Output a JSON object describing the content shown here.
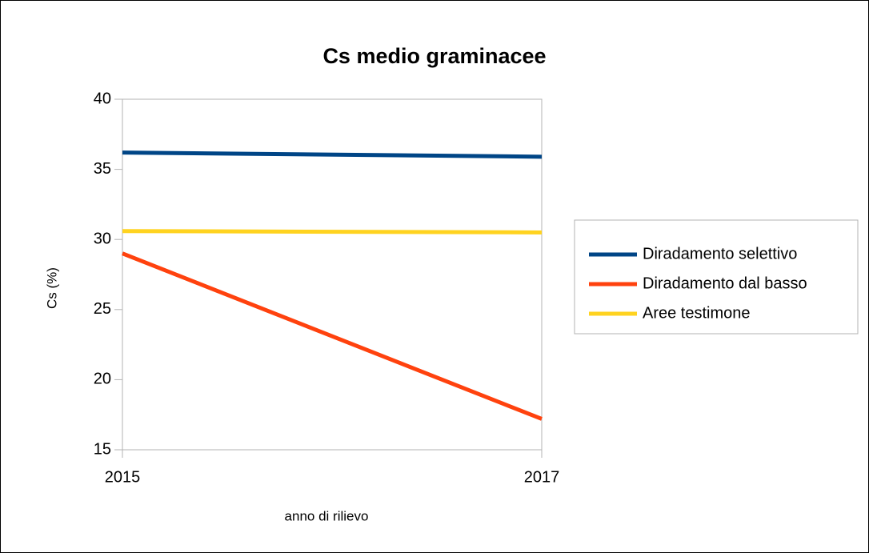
{
  "chart_data": {
    "type": "line",
    "title": "Cs medio graminacee",
    "x_label": "anno di rilievo",
    "y_label": "Cs (%)",
    "x": [
      2015,
      2017
    ],
    "series": [
      {
        "name": "Diradamento selettivo",
        "color": "#004586",
        "values": [
          36.2,
          35.9
        ]
      },
      {
        "name": "Diradamento dal basso",
        "color": "#ff420e",
        "values": [
          29.0,
          17.2
        ]
      },
      {
        "name": "Aree testimone",
        "color": "#ffd320",
        "values": [
          30.6,
          30.5
        ]
      }
    ],
    "xlim": [
      2015,
      2017
    ],
    "xticks": [
      2015,
      2017
    ],
    "ylim": [
      15,
      40
    ],
    "yticks": [
      15,
      20,
      25,
      30,
      35,
      40
    ],
    "legend": "right"
  }
}
